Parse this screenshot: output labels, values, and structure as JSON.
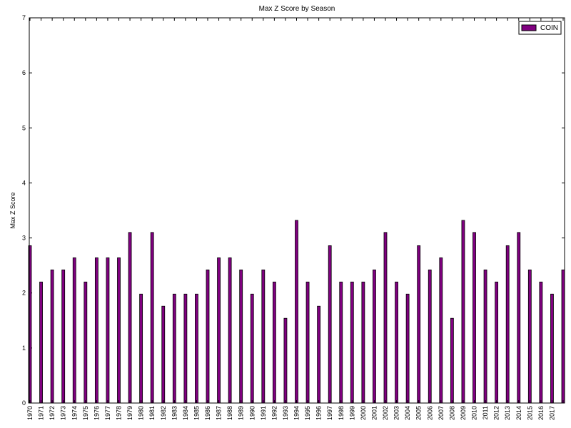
{
  "chart_data": {
    "type": "bar",
    "title": "Max Z Score by Season",
    "y_label": "Max Z Score",
    "categories": [
      "1970",
      "1971",
      "1972",
      "1973",
      "1974",
      "1975",
      "1976",
      "1977",
      "1978",
      "1979",
      "1980",
      "1981",
      "1982",
      "1983",
      "1984",
      "1985",
      "1986",
      "1987",
      "1988",
      "1989",
      "1990",
      "1991",
      "1992",
      "1993",
      "1994",
      "1995",
      "1996",
      "1997",
      "1998",
      "1999",
      "2000",
      "2001",
      "2002",
      "2003",
      "2004",
      "2005",
      "2006",
      "2007",
      "2008",
      "2009",
      "2010",
      "2011",
      "2012",
      "2013",
      "2014",
      "2015",
      "2016",
      "2017",
      null
    ],
    "series": [
      {
        "name": "COIN",
        "color": "#800080",
        "values": [
          2.86,
          2.2,
          2.42,
          2.42,
          2.64,
          2.2,
          2.64,
          2.64,
          2.64,
          3.1,
          1.98,
          3.1,
          1.76,
          1.98,
          1.98,
          1.98,
          2.42,
          2.64,
          2.64,
          2.42,
          1.98,
          2.42,
          2.2,
          1.54,
          3.32,
          2.2,
          1.76,
          2.86,
          2.2,
          2.2,
          2.2,
          2.42,
          3.1,
          2.2,
          1.98,
          2.86,
          2.42,
          2.64,
          1.54,
          3.32,
          3.1,
          2.42,
          2.2,
          2.86,
          3.1,
          2.42,
          2.2,
          1.98,
          2.42
        ]
      }
    ],
    "ylim": [
      0,
      7
    ],
    "yticks": [
      0,
      1,
      2,
      3,
      4,
      5,
      6,
      7
    ],
    "legend": "upper right"
  }
}
